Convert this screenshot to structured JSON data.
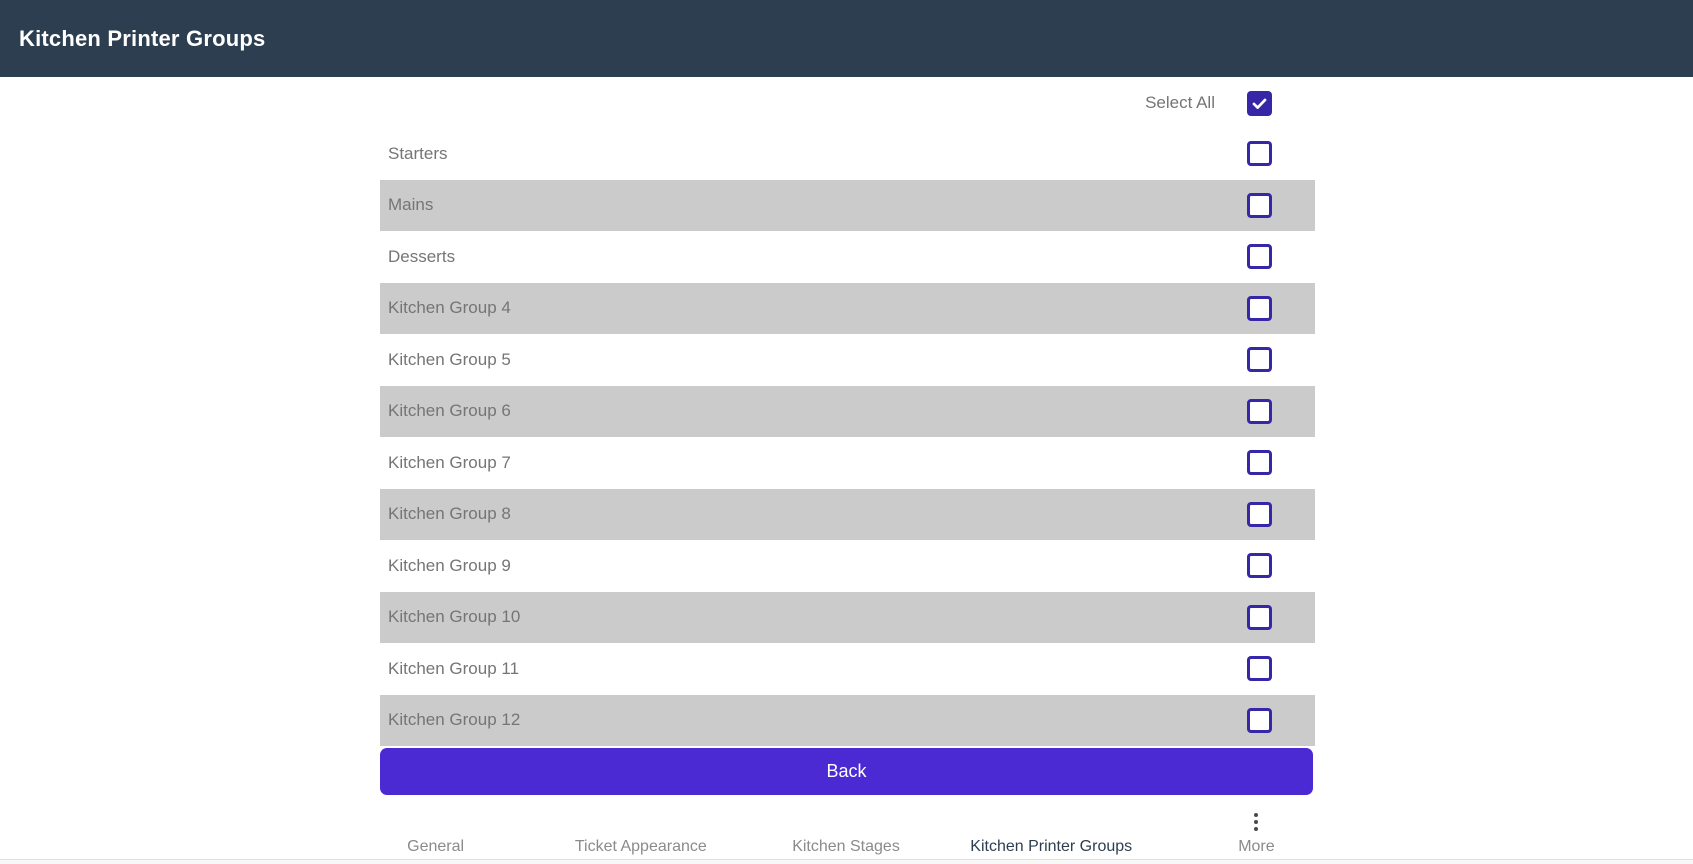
{
  "header": {
    "title": "Kitchen Printer Groups"
  },
  "select_all": {
    "label": "Select All",
    "checked": true
  },
  "groups": [
    {
      "label": "Starters",
      "checked": false
    },
    {
      "label": "Mains",
      "checked": false
    },
    {
      "label": "Desserts",
      "checked": false
    },
    {
      "label": "Kitchen Group 4",
      "checked": false
    },
    {
      "label": "Kitchen Group 5",
      "checked": false
    },
    {
      "label": "Kitchen Group 6",
      "checked": false
    },
    {
      "label": "Kitchen Group 7",
      "checked": false
    },
    {
      "label": "Kitchen Group 8",
      "checked": false
    },
    {
      "label": "Kitchen Group 9",
      "checked": false
    },
    {
      "label": "Kitchen Group 10",
      "checked": false
    },
    {
      "label": "Kitchen Group 11",
      "checked": false
    },
    {
      "label": "Kitchen Group 12",
      "checked": false
    }
  ],
  "back_button": {
    "label": "Back"
  },
  "bottom_nav": {
    "tabs": [
      {
        "label": "General",
        "active": false
      },
      {
        "label": "Ticket Appearance",
        "active": false
      },
      {
        "label": "Kitchen Stages",
        "active": false
      },
      {
        "label": "Kitchen Printer Groups",
        "active": true
      },
      {
        "label": "More",
        "active": false,
        "icon": "kebab-menu-icon"
      }
    ]
  },
  "colors": {
    "header_navy": "#2d3e50",
    "accent_purple": "#4c2ad3",
    "checkbox_indigo": "#3627a8",
    "row_gray": "#cbcbcb",
    "text_gray": "#757575",
    "nav_inactive": "#8b8b8b",
    "nav_active": "#2d3e50"
  }
}
